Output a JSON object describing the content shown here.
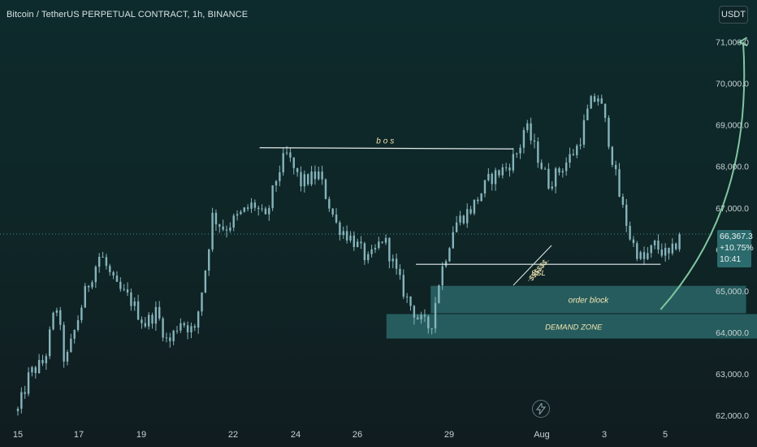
{
  "header": {
    "symbol_title": "Bitcoin / TetherUS PERPETUAL CONTRACT, 1h, BINANCE",
    "currency_button": "USDT"
  },
  "price_badge": {
    "price": "66,367.3",
    "change": "+10.75%",
    "countdown": "10:41"
  },
  "colors": {
    "background_top": "#0d2a2c",
    "background_bottom": "#101c20",
    "candle": "#86b4bb",
    "zone_fill": "#2f7374",
    "arrow": "#7fc6a0",
    "drawing_line": "#e6ecec",
    "annotation_text": "#f3e7b0",
    "badge": "#2c6b6d"
  },
  "chart_data": {
    "type": "candlestick",
    "title": "Bitcoin / TetherUS PERPETUAL CONTRACT, 1h, BINANCE",
    "x_tick_labels": [
      "15",
      "17",
      "19",
      "22",
      "24",
      "26",
      "29",
      "Aug",
      "3",
      "5"
    ],
    "y_ticks": [
      62000,
      63000,
      64000,
      65000,
      66000,
      67000,
      68000,
      69000,
      70000,
      71000
    ],
    "y_tick_labels": [
      "62,000.0",
      "63,000.0",
      "64,000.0",
      "65,000.0",
      "66,000.0",
      "67,000.0",
      "68,000.0",
      "69,000.0",
      "70,000.0",
      "71,000.0"
    ],
    "ylim": [
      61850,
      72300
    ],
    "grid": false,
    "close_price": 66367.3,
    "price_path": [
      [
        0,
        62100
      ],
      [
        0.4,
        63000
      ],
      [
        0.9,
        63300
      ],
      [
        1.3,
        64700
      ],
      [
        1.6,
        63200
      ],
      [
        2.3,
        65000
      ],
      [
        2.8,
        65900
      ],
      [
        3.3,
        65100
      ],
      [
        3.8,
        64800
      ],
      [
        4.3,
        64200
      ],
      [
        4.7,
        64500
      ],
      [
        5.1,
        63700
      ],
      [
        5.5,
        64300
      ],
      [
        6.0,
        64000
      ],
      [
        6.4,
        65700
      ],
      [
        6.6,
        66800
      ],
      [
        7.0,
        66500
      ],
      [
        7.5,
        66800
      ],
      [
        8.0,
        67100
      ],
      [
        8.4,
        66700
      ],
      [
        8.8,
        67800
      ],
      [
        9.1,
        68300
      ],
      [
        9.6,
        67600
      ],
      [
        10.2,
        67800
      ],
      [
        10.8,
        66600
      ],
      [
        11.4,
        66200
      ],
      [
        11.9,
        65700
      ],
      [
        12.4,
        66300
      ],
      [
        12.9,
        65300
      ],
      [
        13.2,
        64800
      ],
      [
        13.6,
        64300
      ],
      [
        14.0,
        64100
      ],
      [
        14.3,
        65300
      ],
      [
        14.8,
        66600
      ],
      [
        15.4,
        67000
      ],
      [
        16.0,
        67700
      ],
      [
        16.6,
        68000
      ],
      [
        17.0,
        68400
      ],
      [
        17.2,
        69000
      ],
      [
        17.6,
        68300
      ],
      [
        18.0,
        67600
      ],
      [
        18.6,
        68100
      ],
      [
        19.0,
        68500
      ],
      [
        19.4,
        69500
      ],
      [
        19.7,
        69700
      ],
      [
        20.0,
        68800
      ],
      [
        20.4,
        67300
      ],
      [
        20.8,
        66200
      ],
      [
        21.2,
        65700
      ],
      [
        21.6,
        66100
      ],
      [
        22.1,
        65800
      ],
      [
        22.5,
        66400
      ]
    ],
    "annotations": {
      "bos": {
        "label": "bos",
        "segment": [
          [
            8.2,
            68450
          ],
          [
            16.8,
            68420
          ]
        ]
      },
      "ssl": {
        "label": "SSL",
        "segment": [
          [
            13.5,
            65640
          ],
          [
            21.8,
            65640
          ]
        ]
      },
      "liquidity_label": "$$$$$$",
      "order_block": {
        "label": "order block",
        "x_range": [
          14.0,
          24.7
        ],
        "y_range": [
          64460,
          65120
        ]
      },
      "demand_zone": {
        "label": "DEMAND ZONE",
        "x_range": [
          12.5,
          25.2
        ],
        "y_range": [
          63850,
          64440
        ]
      },
      "projection_arrow": {
        "from": [
          21.8,
          64550
        ],
        "to": [
          24.6,
          71000
        ]
      }
    }
  }
}
